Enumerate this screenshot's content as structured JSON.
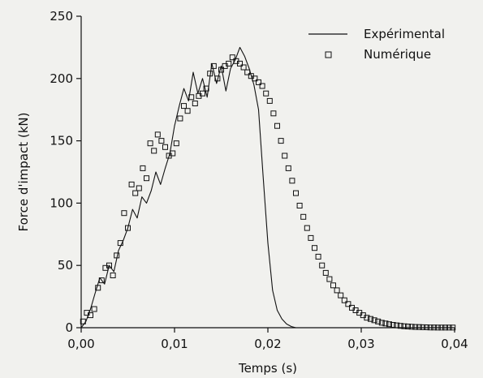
{
  "chart_data": {
    "type": "line",
    "title": "",
    "xlabel": "Temps (s)",
    "ylabel": "Force d'impact (kN)",
    "xlim": [
      0,
      0.04
    ],
    "ylim": [
      0,
      250
    ],
    "grid": false,
    "legend_position": "top-right",
    "x_ticks": [
      {
        "value": 0.0,
        "label": "0,00"
      },
      {
        "value": 0.01,
        "label": "0,01"
      },
      {
        "value": 0.02,
        "label": "0,02"
      },
      {
        "value": 0.03,
        "label": "0,03"
      },
      {
        "value": 0.04,
        "label": "0,04"
      }
    ],
    "y_ticks": [
      {
        "value": 0,
        "label": "0"
      },
      {
        "value": 50,
        "label": "50"
      },
      {
        "value": 100,
        "label": "100"
      },
      {
        "value": 150,
        "label": "150"
      },
      {
        "value": 200,
        "label": "200"
      },
      {
        "value": 250,
        "label": "250"
      }
    ],
    "series": [
      {
        "name": "Expérimental",
        "style": "line",
        "color": "#111111",
        "x": [
          0.0,
          0.0005,
          0.001,
          0.0015,
          0.002,
          0.0025,
          0.003,
          0.0035,
          0.004,
          0.0045,
          0.005,
          0.0055,
          0.006,
          0.0065,
          0.007,
          0.0075,
          0.008,
          0.0085,
          0.009,
          0.0095,
          0.01,
          0.0105,
          0.011,
          0.0115,
          0.012,
          0.0125,
          0.013,
          0.0135,
          0.014,
          0.0145,
          0.015,
          0.0155,
          0.016,
          0.0165,
          0.017,
          0.0175,
          0.018,
          0.0185,
          0.019,
          0.0195,
          0.02,
          0.0205,
          0.021,
          0.0215,
          0.022,
          0.0225,
          0.023
        ],
        "y": [
          0,
          5,
          15,
          28,
          40,
          35,
          50,
          45,
          62,
          70,
          80,
          95,
          88,
          105,
          100,
          110,
          125,
          115,
          128,
          140,
          162,
          178,
          192,
          182,
          205,
          188,
          200,
          185,
          212,
          196,
          210,
          190,
          208,
          215,
          225,
          218,
          208,
          195,
          175,
          120,
          68,
          30,
          14,
          7,
          3,
          1,
          0
        ]
      },
      {
        "name": "Numérique",
        "style": "markers",
        "marker": "square-open",
        "color": "#111111",
        "x": [
          0.0002,
          0.0006,
          0.001,
          0.0014,
          0.0018,
          0.0022,
          0.0026,
          0.003,
          0.0034,
          0.0038,
          0.0042,
          0.0046,
          0.005,
          0.0054,
          0.0058,
          0.0062,
          0.0066,
          0.007,
          0.0074,
          0.0078,
          0.0082,
          0.0086,
          0.009,
          0.0094,
          0.0098,
          0.0102,
          0.0106,
          0.011,
          0.0114,
          0.0118,
          0.0122,
          0.0126,
          0.013,
          0.0134,
          0.0138,
          0.0142,
          0.0146,
          0.015,
          0.0154,
          0.0158,
          0.0162,
          0.0166,
          0.017,
          0.0174,
          0.0178,
          0.0182,
          0.0186,
          0.019,
          0.0194,
          0.0198,
          0.0202,
          0.0206,
          0.021,
          0.0214,
          0.0218,
          0.0222,
          0.0226,
          0.023,
          0.0234,
          0.0238,
          0.0242,
          0.0246,
          0.025,
          0.0254,
          0.0258,
          0.0262,
          0.0266,
          0.027,
          0.0274,
          0.0278,
          0.0282,
          0.0286,
          0.029,
          0.0294,
          0.0298,
          0.0302,
          0.0306,
          0.031,
          0.0314,
          0.0318,
          0.0322,
          0.0326,
          0.033,
          0.0334,
          0.0338,
          0.0342,
          0.0346,
          0.035,
          0.0354,
          0.0358,
          0.0362,
          0.0366,
          0.037,
          0.0374,
          0.0378,
          0.0382,
          0.0386,
          0.039,
          0.0394,
          0.0398
        ],
        "y": [
          5,
          12,
          10,
          15,
          32,
          38,
          48,
          50,
          42,
          58,
          68,
          92,
          80,
          115,
          108,
          112,
          128,
          120,
          148,
          142,
          155,
          150,
          145,
          138,
          140,
          148,
          168,
          178,
          174,
          185,
          180,
          186,
          188,
          192,
          204,
          210,
          200,
          207,
          210,
          212,
          217,
          214,
          212,
          209,
          205,
          202,
          200,
          197,
          194,
          188,
          182,
          172,
          162,
          150,
          138,
          128,
          118,
          108,
          98,
          89,
          80,
          72,
          64,
          57,
          50,
          44,
          39,
          34,
          30,
          26,
          22,
          19,
          16,
          14,
          12,
          10,
          8,
          7,
          6,
          5,
          4,
          3.4,
          2.8,
          2.3,
          1.9,
          1.5,
          1.2,
          1.0,
          0.8,
          0.6,
          0.5,
          0.4,
          0.3,
          0.2,
          0.2,
          0.1,
          0.1,
          0.1,
          0.1,
          0.1
        ]
      }
    ]
  }
}
